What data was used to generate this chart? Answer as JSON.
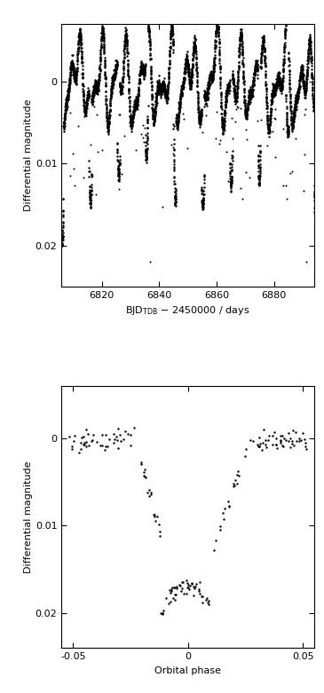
{
  "upper_panel": {
    "xlim": [
      6806,
      6894
    ],
    "ylim": [
      0.025,
      -0.007
    ],
    "xticks": [
      6820,
      6840,
      6860,
      6880
    ],
    "yticks": [
      0,
      0.01,
      0.02
    ],
    "ytick_labels": [
      "0",
      "0.01",
      "0.02"
    ],
    "xlabel": "BJD$_{\\rm TDB}$ − 2450000 / days",
    "ylabel": "Differential magnitude"
  },
  "lower_panel": {
    "xlim": [
      -0.055,
      0.055
    ],
    "ylim": [
      0.024,
      -0.006
    ],
    "xticks": [
      -0.05,
      0,
      0.05
    ],
    "yticks": [
      0,
      0.01,
      0.02
    ],
    "ytick_labels": [
      "0",
      "0.01",
      "0.02"
    ],
    "xlabel": "Orbital phase",
    "ylabel": "Differential magnitude"
  },
  "dot_color": "#000000",
  "dot_size": 3.0,
  "background_color": "#ffffff",
  "fig_width": 3.65,
  "fig_height": 7.81
}
